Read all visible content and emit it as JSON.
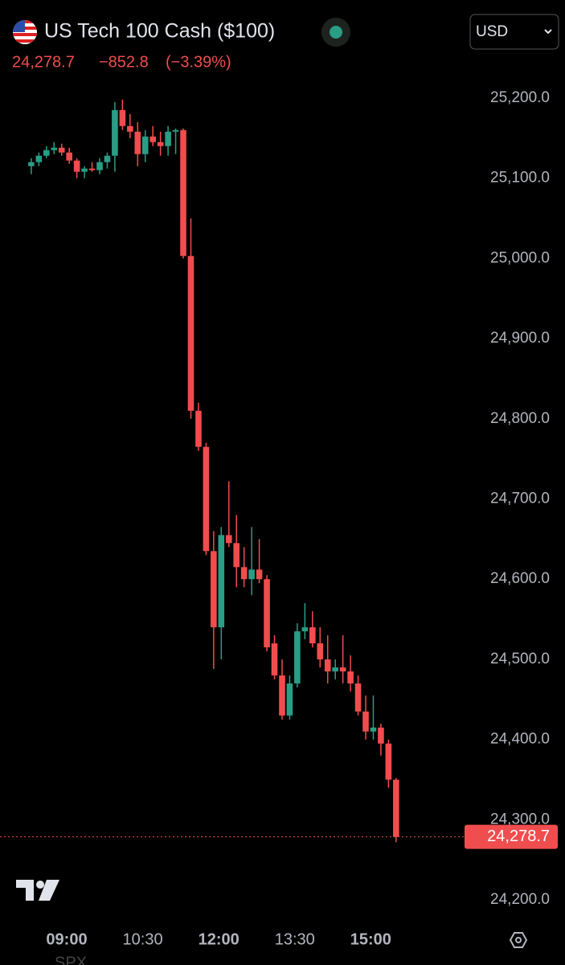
{
  "chart_data": {
    "type": "candlestick",
    "title": "US Tech 100 Cash ($100)",
    "last_price": {
      "value": 24278.7,
      "label": "24,278.7"
    },
    "change": {
      "value": -852.8,
      "label": "−852.8"
    },
    "change_percent": {
      "value": -3.39,
      "label": "(−3.39%)"
    },
    "currency": "USD",
    "footer": "SPX",
    "up_color": "#2a9d85",
    "down_color": "#f04d4e",
    "x": [
      498,
      507,
      516,
      525,
      534,
      543,
      552,
      561,
      570,
      579,
      588,
      597,
      606,
      615,
      624,
      633,
      642,
      651,
      660,
      669,
      678,
      687,
      696,
      705,
      714,
      723,
      732,
      741,
      750,
      759,
      768,
      777,
      786,
      795,
      804,
      813,
      822,
      831,
      840,
      849,
      858,
      867,
      876,
      885,
      894,
      903,
      912,
      921,
      930
    ],
    "open": [
      25115,
      25120,
      25128,
      25135,
      25138,
      25132,
      25122,
      25108,
      25112,
      25110,
      25120,
      25128,
      25185,
      25165,
      25158,
      25130,
      25152,
      25145,
      25140,
      25158,
      25160,
      25003,
      24810,
      24765,
      24635,
      24540,
      24655,
      24645,
      24615,
      24600,
      24612,
      24600,
      24520,
      24480,
      24430,
      24470,
      24535,
      24540,
      24520,
      24500,
      24485,
      24490,
      24485,
      24470,
      24435,
      24410,
      24415,
      24395,
      24350
    ],
    "high": [
      25125,
      25132,
      25140,
      25145,
      25143,
      25138,
      25125,
      25115,
      25120,
      25125,
      25132,
      25195,
      25198,
      25180,
      25170,
      25160,
      25165,
      25158,
      25165,
      25162,
      25162,
      25050,
      24820,
      24770,
      24660,
      24665,
      24722,
      24680,
      24640,
      24665,
      24650,
      24605,
      24530,
      24500,
      24480,
      24545,
      24570,
      24560,
      24540,
      24530,
      24500,
      24530,
      24505,
      24480,
      24455,
      24455,
      24420,
      24400,
      24352
    ],
    "low": [
      25105,
      25115,
      25125,
      25130,
      25128,
      25118,
      25100,
      25100,
      25108,
      25105,
      25112,
      25108,
      25160,
      25150,
      25115,
      25120,
      25140,
      25128,
      25128,
      25130,
      25000,
      24800,
      24760,
      24630,
      24488,
      24500,
      24640,
      24590,
      24590,
      24580,
      24595,
      24510,
      24475,
      24425,
      24425,
      24465,
      24525,
      24515,
      24490,
      24470,
      24475,
      24470,
      24460,
      24430,
      24400,
      24400,
      24380,
      24340,
      24272
    ],
    "close": [
      25120,
      25128,
      25135,
      25138,
      25132,
      25122,
      25108,
      25112,
      25110,
      25120,
      25128,
      25185,
      25165,
      25158,
      25130,
      25152,
      25145,
      25140,
      25158,
      25160,
      25003,
      24810,
      24765,
      24635,
      24540,
      24655,
      24645,
      24615,
      24600,
      24612,
      24600,
      24515,
      24480,
      24430,
      24470,
      24535,
      24540,
      24520,
      24500,
      24485,
      24490,
      24485,
      24470,
      24435,
      24410,
      24415,
      24395,
      24350,
      24278.7
    ],
    "xlim": [
      461,
      1130
    ],
    "xticks": [
      {
        "value": 540,
        "label": "09:00"
      },
      {
        "value": 630,
        "label": "10:30"
      },
      {
        "value": 720,
        "label": "12:00"
      },
      {
        "value": 810,
        "label": "13:30"
      },
      {
        "value": 900,
        "label": "15:00"
      }
    ],
    "ylim": [
      24150,
      25250
    ],
    "yticks": [
      {
        "value": 24200,
        "label": "24,200.0"
      },
      {
        "value": 24300,
        "label": "24,300.0"
      },
      {
        "value": 24400,
        "label": "24,400.0"
      },
      {
        "value": 24500,
        "label": "24,500.0"
      },
      {
        "value": 24600,
        "label": "24,600.0"
      },
      {
        "value": 24700,
        "label": "24,700.0"
      },
      {
        "value": 24800,
        "label": "24,800.0"
      },
      {
        "value": 24900,
        "label": "24,900.0"
      },
      {
        "value": 25000,
        "label": "25,000.0"
      },
      {
        "value": 25100,
        "label": "25,100.0"
      },
      {
        "value": 25200,
        "label": "25,200.0"
      }
    ]
  }
}
